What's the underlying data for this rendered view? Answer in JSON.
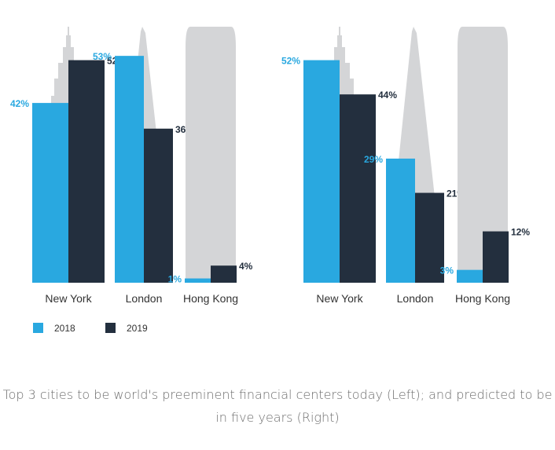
{
  "chart_data": [
    {
      "type": "bar",
      "categories": [
        "New York",
        "London",
        "Hong Kong"
      ],
      "series": [
        {
          "name": "2018",
          "values": [
            42,
            53,
            1
          ],
          "labels": [
            "42%",
            "53%",
            "1%"
          ]
        },
        {
          "name": "2019",
          "values": [
            52,
            36,
            4
          ],
          "labels": [
            "52%",
            "36%",
            "4%"
          ]
        }
      ],
      "ylim": [
        0,
        100
      ]
    },
    {
      "type": "bar",
      "categories": [
        "New York",
        "London",
        "Hong Kong"
      ],
      "series": [
        {
          "name": "2018",
          "values": [
            52,
            29,
            3
          ],
          "labels": [
            "52%",
            "29%",
            "3%"
          ]
        },
        {
          "name": "2019",
          "values": [
            44,
            21,
            12
          ],
          "labels": [
            "44%",
            "21%",
            "12%"
          ]
        }
      ],
      "ylim": [
        0,
        100
      ]
    }
  ],
  "legend": [
    {
      "name": "2018",
      "color": "#29a8e0"
    },
    {
      "name": "2019",
      "color": "#232f3e"
    }
  ],
  "colors": {
    "series_2018": "#29a8e0",
    "series_2019": "#232f3e",
    "building": "#d4d5d7"
  },
  "caption": "Top 3 cities to be world's preeminent financial centers today (Left); and predicted to be in five years (Right)"
}
